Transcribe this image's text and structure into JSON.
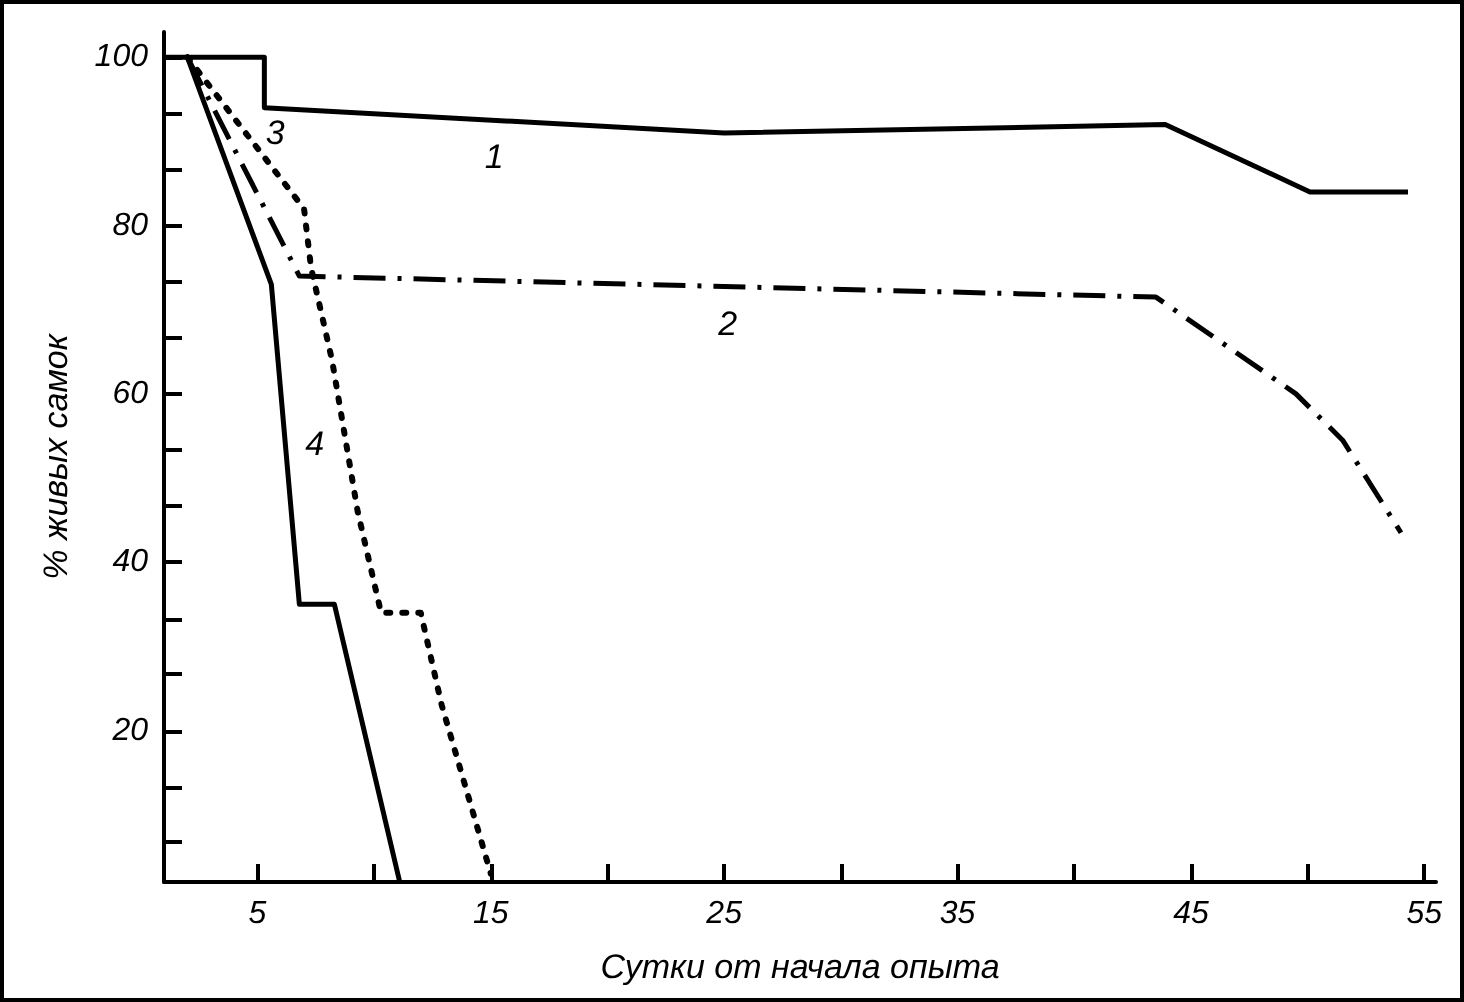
{
  "chart_data": {
    "type": "line",
    "xlabel": "Сутки от начала опыта",
    "ylabel": "% живых самок",
    "xlim": [
      1,
      55.5
    ],
    "ylim": [
      2,
      103
    ],
    "xticks": [
      5,
      {
        "value": 10,
        "label": null
      },
      15,
      {
        "value": 20,
        "label": null
      },
      25,
      {
        "value": 30,
        "label": null
      },
      35,
      {
        "value": 40,
        "label": null
      },
      45,
      {
        "value": 50,
        "label": null
      },
      55
    ],
    "yticks": [
      {
        "value": 6.7,
        "label": null
      },
      {
        "value": 13.3,
        "label": null
      },
      20,
      {
        "value": 26.7,
        "label": null
      },
      {
        "value": 33.3,
        "label": null
      },
      40,
      {
        "value": 46.7,
        "label": null
      },
      {
        "value": 53.3,
        "label": null
      },
      60,
      {
        "value": 66.7,
        "label": null
      },
      {
        "value": 73.3,
        "label": null
      },
      80,
      {
        "value": 86.7,
        "label": null
      },
      {
        "value": 93.3,
        "label": null
      },
      100
    ],
    "grid": false,
    "marker": "none",
    "series": [
      {
        "name": "1",
        "color": "#000000",
        "line_style": "solid",
        "x": [
          1,
          5.3,
          5.3,
          25,
          43.9,
          50.1,
          54.3
        ],
        "values": [
          100,
          100,
          94,
          91,
          92,
          84,
          84
        ]
      },
      {
        "name": "2",
        "color": "#000000",
        "line_style": "dashdot",
        "x": [
          2,
          6.8,
          43.5,
          49.5,
          51.5,
          54
        ],
        "values": [
          100,
          74,
          71.5,
          60,
          54.5,
          43.5
        ]
      },
      {
        "name": "3",
        "color": "#000000",
        "line_style": "dotted",
        "x": [
          2,
          7,
          7.3,
          8.2,
          9.3,
          10.3,
          12,
          12.9,
          15
        ],
        "values": [
          100,
          82,
          75,
          64,
          46,
          34,
          34,
          23,
          3
        ]
      },
      {
        "name": "4",
        "color": "#000000",
        "line_style": "solid",
        "x": [
          2,
          5.6,
          6.8,
          8.3,
          11.1
        ],
        "values": [
          100,
          73,
          35,
          35,
          2
        ]
      }
    ]
  }
}
